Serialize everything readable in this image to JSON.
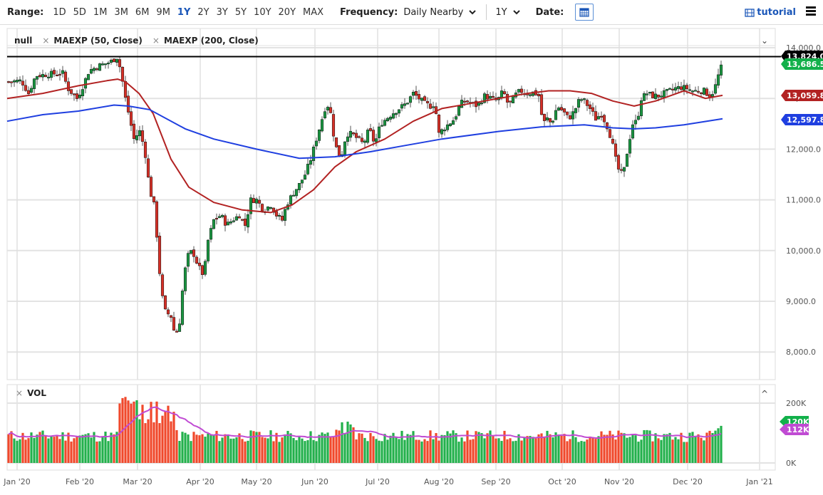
{
  "toolbar": {
    "range_label": "Range:",
    "ranges": [
      "1D",
      "5D",
      "1M",
      "3M",
      "6M",
      "9M",
      "1Y",
      "2Y",
      "3Y",
      "5Y",
      "10Y",
      "20Y",
      "MAX"
    ],
    "active_range": "1Y",
    "frequency_label": "Frequency:",
    "frequency_value": "Daily Nearby",
    "period_value": "1Y",
    "date_label": "Date:",
    "tutorial_label": "tutorial",
    "icons": {
      "calendar": "calendar-icon",
      "tutorial": "film-icon",
      "menu": "hamburger-menu-icon"
    }
  },
  "legend": {
    "series_name": "null",
    "studies": [
      "MAEXP (50, Close)",
      "MAEXP (200, Close)"
    ],
    "volume_label": "VOL"
  },
  "colors": {
    "up": "#1a9641",
    "down": "#d73027",
    "ma50": "#b22222",
    "ma200": "#1f3fe0",
    "vol_up": "#22b04b",
    "vol_down": "#f0482b",
    "vol_ma": "#c04bd3",
    "last_price": "#000000"
  },
  "chart_data": [
    {
      "type": "candlestick",
      "title": "",
      "series": [
        {
          "name": "null",
          "type": "candlestick"
        },
        {
          "name": "MAEXP (50, Close)",
          "last": 13059.8
        },
        {
          "name": "MAEXP (200, Close)",
          "last": 12597.8
        }
      ],
      "x_ticks": [
        "Jan '20",
        "Feb '20",
        "Mar '20",
        "Apr '20",
        "May '20",
        "Jun '20",
        "Jul '20",
        "Aug '20",
        "Sep '20",
        "Oct '20",
        "Nov '20",
        "Dec '20",
        "Jan '21"
      ],
      "y_ticks": [
        "14,000.0",
        "13,000.0",
        "12,000.0",
        "11,000.0",
        "10,000.0",
        "9,000.0",
        "8,000.0"
      ],
      "ylim": [
        7900,
        14200
      ],
      "price_tags": [
        {
          "label": "13,824.0",
          "color": "#000000",
          "value": 13824.0
        },
        {
          "label": "13,686.5",
          "color": "#12b04a",
          "value": 13686.5
        },
        {
          "label": "13,059.8",
          "color": "#b22222",
          "value": 13059.8
        },
        {
          "label": "12,597.8",
          "color": "#1f3fe0",
          "value": 12597.8
        }
      ],
      "key_points": {
        "pre_covid_high": 13824.0,
        "march_low": 7900,
        "last_close": 13686.5
      },
      "monthly_closes": [
        {
          "month": "Jan '20",
          "approx_close": 13050
        },
        {
          "month": "Feb '20",
          "approx_close": 12600
        },
        {
          "month": "Mar '20",
          "approx_close": 9300
        },
        {
          "month": "Apr '20",
          "approx_close": 10300
        },
        {
          "month": "May '20",
          "approx_close": 10800
        },
        {
          "month": "Jun '20",
          "approx_close": 12000
        },
        {
          "month": "Jul '20",
          "approx_close": 12800
        },
        {
          "month": "Aug '20",
          "approx_close": 13000
        },
        {
          "month": "Sep '20",
          "approx_close": 12750
        },
        {
          "month": "Oct '20",
          "approx_close": 11600
        },
        {
          "month": "Nov '20",
          "approx_close": 13300
        },
        {
          "month": "Dec '20",
          "approx_close": 13686.5
        }
      ]
    },
    {
      "type": "bar",
      "title": "VOL",
      "y_ticks": [
        "200K",
        "0K"
      ],
      "ylim": [
        0,
        230000
      ],
      "price_tags": [
        {
          "label": "120K",
          "color": "#12b04a"
        },
        {
          "label": "112K",
          "color": "#c04bd3"
        }
      ],
      "notes": "Volume spikes late Feb - mid Mar 2020 (~200-230K); typical 60-110K"
    }
  ]
}
